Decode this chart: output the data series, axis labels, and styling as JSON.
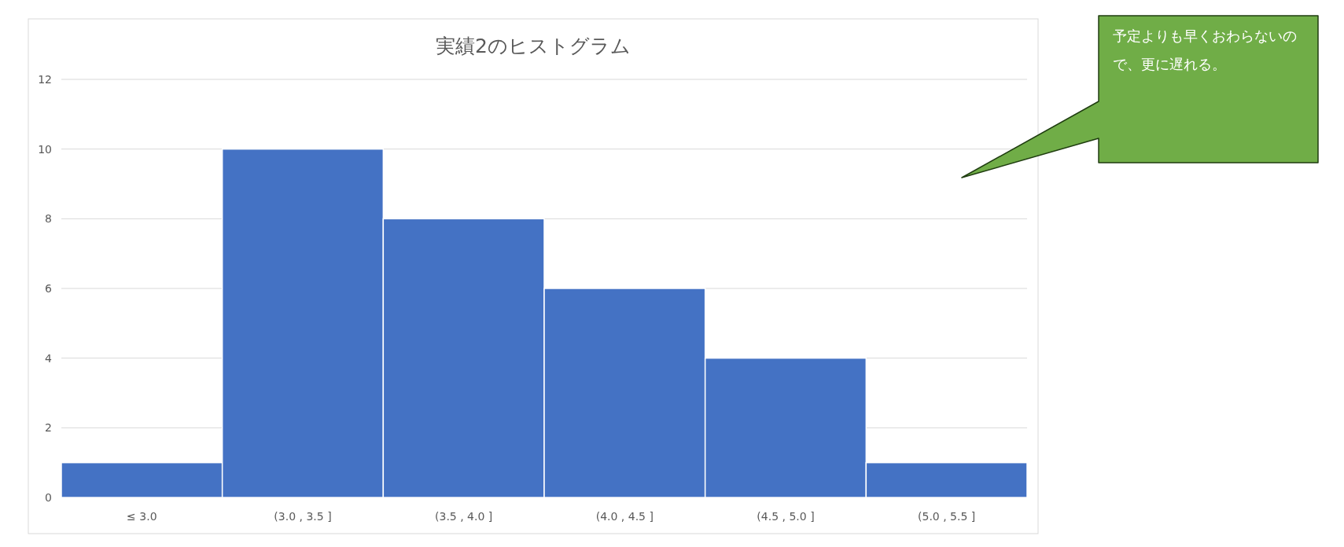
{
  "chart_data": {
    "type": "bar",
    "title": "実績2のヒストグラム",
    "categories": [
      "≤ 3.0",
      "(3.0 , 3.5 ]",
      "(3.5 , 4.0 ]",
      "(4.0 , 4.5 ]",
      "(4.5 , 5.0 ]",
      "(5.0 , 5.5 ]"
    ],
    "values": [
      1,
      10,
      8,
      6,
      4,
      1
    ],
    "color": "#4472c4",
    "ylim": [
      0,
      12
    ],
    "yticks": [
      0,
      2,
      4,
      6,
      8,
      10,
      12
    ],
    "grid": "y",
    "annotations": [
      "予定よりも早くおわらないので、更に遅れる。"
    ]
  }
}
